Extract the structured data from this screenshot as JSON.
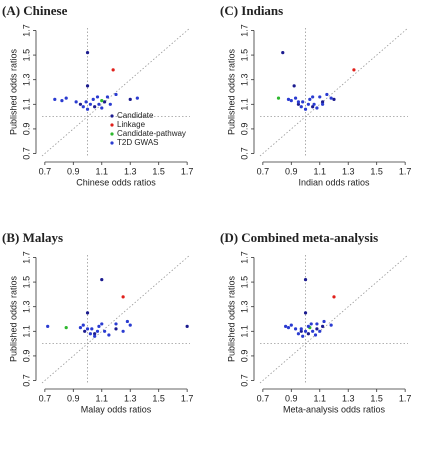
{
  "chart_data": [
    {
      "type": "scatter",
      "title": "(A) Chinese",
      "xlabel": "Chinese odds ratios",
      "ylabel": "Published odds ratios",
      "xlim": [
        0.68,
        1.72
      ],
      "ylim": [
        0.68,
        1.72
      ],
      "xticks": [
        0.7,
        0.9,
        1.1,
        1.3,
        1.5,
        1.7
      ],
      "yticks": [
        0.7,
        0.9,
        1.1,
        1.3,
        1.5,
        1.7
      ],
      "vline": 1,
      "hline": 1,
      "diagonal": true,
      "legend": "lower right",
      "series": [
        {
          "name": "Candidate",
          "color": "#1b1b8f",
          "x": [
            1.0,
            1.0,
            0.95,
            1.05,
            1.12,
            1.3
          ],
          "values": [
            1.52,
            1.25,
            1.1,
            1.08,
            1.12,
            1.14
          ]
        },
        {
          "name": "Linkage",
          "color": "#e0201b",
          "x": [
            1.18
          ],
          "values": [
            1.38
          ]
        },
        {
          "name": "Candidate-pathway",
          "color": "#2eb82e",
          "x": [
            1.1
          ],
          "values": [
            1.13
          ]
        },
        {
          "name": "T2D GWAS",
          "color": "#2a3bd1",
          "x": [
            0.77,
            0.82,
            0.85,
            0.92,
            0.97,
            0.99,
            1.0,
            1.02,
            1.04,
            1.07,
            1.08,
            1.1,
            1.14,
            1.16,
            1.2,
            1.35
          ],
          "values": [
            1.14,
            1.13,
            1.15,
            1.12,
            1.08,
            1.12,
            1.06,
            1.1,
            1.14,
            1.16,
            1.1,
            1.07,
            1.16,
            1.1,
            1.18,
            1.15
          ]
        }
      ]
    },
    {
      "type": "scatter",
      "title": "(C) Indians",
      "xlabel": "Indian odds ratios",
      "ylabel": "Published odds ratios",
      "xlim": [
        0.68,
        1.72
      ],
      "ylim": [
        0.68,
        1.72
      ],
      "xticks": [
        0.7,
        0.9,
        1.1,
        1.3,
        1.5,
        1.7
      ],
      "yticks": [
        0.7,
        0.9,
        1.1,
        1.3,
        1.5,
        1.7
      ],
      "vline": 1,
      "hline": 1,
      "diagonal": true,
      "series": [
        {
          "color": "#1b1b8f",
          "x": [
            0.84,
            0.92,
            0.95,
            1.05,
            1.12,
            1.2
          ],
          "values": [
            1.52,
            1.25,
            1.1,
            1.08,
            1.12,
            1.14
          ]
        },
        {
          "color": "#e0201b",
          "x": [
            1.34
          ],
          "values": [
            1.38
          ]
        },
        {
          "color": "#2eb82e",
          "x": [
            0.81
          ],
          "values": [
            1.15
          ]
        },
        {
          "color": "#2a3bd1",
          "x": [
            0.88,
            0.9,
            0.93,
            0.95,
            0.97,
            0.98,
            1.0,
            1.02,
            1.03,
            1.05,
            1.06,
            1.08,
            1.1,
            1.12,
            1.15,
            1.18
          ],
          "values": [
            1.14,
            1.13,
            1.15,
            1.12,
            1.08,
            1.12,
            1.06,
            1.1,
            1.14,
            1.16,
            1.1,
            1.07,
            1.16,
            1.1,
            1.18,
            1.15
          ]
        }
      ]
    },
    {
      "type": "scatter",
      "title": "(B) Malays",
      "xlabel": "Malay odds ratios",
      "ylabel": "Published odds ratios",
      "xlim": [
        0.68,
        1.72
      ],
      "ylim": [
        0.68,
        1.72
      ],
      "xticks": [
        0.7,
        0.9,
        1.1,
        1.3,
        1.5,
        1.7
      ],
      "yticks": [
        0.7,
        0.9,
        1.1,
        1.3,
        1.5,
        1.7
      ],
      "vline": 1,
      "hline": 1,
      "diagonal": true,
      "series": [
        {
          "color": "#1b1b8f",
          "x": [
            1.1,
            1.0,
            0.98,
            1.05,
            1.2,
            1.7
          ],
          "values": [
            1.52,
            1.25,
            1.1,
            1.08,
            1.12,
            1.14
          ]
        },
        {
          "color": "#e0201b",
          "x": [
            1.25
          ],
          "values": [
            1.38
          ]
        },
        {
          "color": "#2eb82e",
          "x": [
            0.85
          ],
          "values": [
            1.13
          ]
        },
        {
          "color": "#2a3bd1",
          "x": [
            0.72,
            0.95,
            0.97,
            1.0,
            1.02,
            1.03,
            1.05,
            1.07,
            1.08,
            1.1,
            1.12,
            1.15,
            1.2,
            1.25,
            1.28,
            1.3
          ],
          "values": [
            1.14,
            1.13,
            1.15,
            1.12,
            1.08,
            1.12,
            1.06,
            1.1,
            1.14,
            1.16,
            1.1,
            1.07,
            1.16,
            1.1,
            1.18,
            1.15
          ]
        }
      ]
    },
    {
      "type": "scatter",
      "title": "(D) Combined meta-analysis",
      "xlabel": "Meta-analysis odds ratios",
      "ylabel": "Published odds ratios",
      "xlim": [
        0.68,
        1.72
      ],
      "ylim": [
        0.68,
        1.72
      ],
      "xticks": [
        0.7,
        0.9,
        1.1,
        1.3,
        1.5,
        1.7
      ],
      "yticks": [
        0.7,
        0.9,
        1.1,
        1.3,
        1.5,
        1.7
      ],
      "vline": 1,
      "hline": 1,
      "diagonal": true,
      "series": [
        {
          "color": "#1b1b8f",
          "x": [
            1.0,
            1.0,
            0.97,
            1.02,
            1.08,
            1.12
          ],
          "values": [
            1.52,
            1.25,
            1.1,
            1.08,
            1.12,
            1.14
          ]
        },
        {
          "color": "#e0201b",
          "x": [
            1.2
          ],
          "values": [
            1.38
          ]
        },
        {
          "color": "#2eb82e",
          "x": [
            1.03
          ],
          "values": [
            1.13
          ]
        },
        {
          "color": "#2a3bd1",
          "x": [
            0.86,
            0.88,
            0.9,
            0.93,
            0.95,
            0.97,
            0.98,
            1.0,
            1.02,
            1.04,
            1.05,
            1.07,
            1.08,
            1.1,
            1.13,
            1.18
          ],
          "values": [
            1.14,
            1.13,
            1.15,
            1.12,
            1.08,
            1.12,
            1.06,
            1.1,
            1.14,
            1.16,
            1.1,
            1.07,
            1.16,
            1.1,
            1.18,
            1.15
          ]
        }
      ]
    }
  ]
}
